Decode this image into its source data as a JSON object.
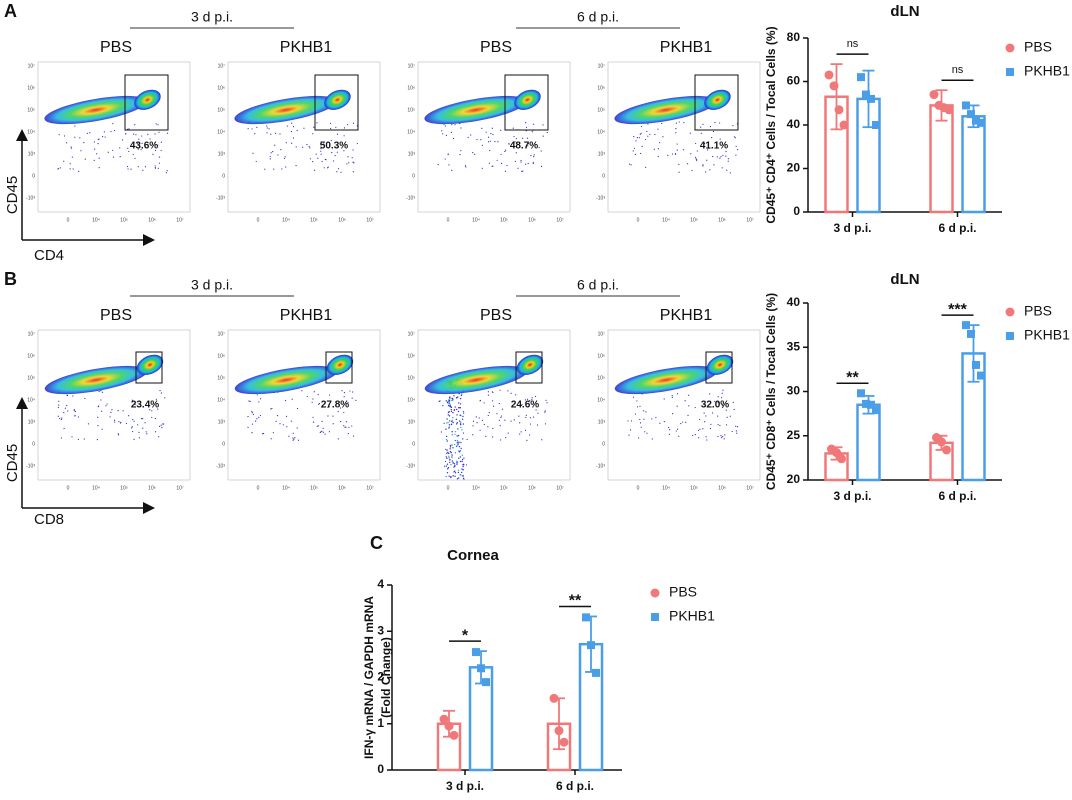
{
  "flow": [
    {
      "letter": "A",
      "marker_x": "CD4",
      "marker_y": "CD45",
      "groups": [
        "3 d p.i.",
        "6 d p.i."
      ],
      "samples": [
        "PBS",
        "PKHB1",
        "PBS",
        "PKHB1"
      ],
      "gates": [
        "43.6%",
        "50.3%",
        "48.7%",
        "41.1%"
      ]
    },
    {
      "letter": "B",
      "marker_x": "CD8",
      "marker_y": "CD45",
      "groups": [
        "3 d p.i.",
        "6 d p.i."
      ],
      "samples": [
        "PBS",
        "PKHB1",
        "PBS",
        "PKHB1"
      ],
      "gates": [
        "23.4%",
        "27.8%",
        "24.6%",
        "32.0%"
      ]
    }
  ],
  "flow_yticks": [
    "10⁷",
    "10⁶",
    "10⁵",
    "10⁴",
    "10³",
    "0",
    "-10³"
  ],
  "flow_xticks": [
    "0",
    "10⁴",
    "10⁵",
    "10⁶",
    "10⁷"
  ],
  "chart_data": [
    {
      "type": "bar",
      "title": "dLN",
      "ylabel": "CD45⁺ CD4⁺ Cells / Tocal Cells (%)",
      "categories": [
        "3 d p.i.",
        "6 d p.i."
      ],
      "ylim": [
        0,
        80
      ],
      "yticks": [
        0,
        20,
        40,
        60,
        80
      ],
      "series": [
        {
          "name": "PBS",
          "color": "#f07878",
          "marker": "circle",
          "values": [
            53,
            49
          ],
          "errors": [
            15,
            7
          ],
          "points": [
            [
              63,
              58,
              47,
              40
            ],
            [
              54,
              49,
              48,
              47
            ]
          ]
        },
        {
          "name": "PKHB1",
          "color": "#4a9ee8",
          "marker": "square",
          "values": [
            52,
            44
          ],
          "errors": [
            13,
            5
          ],
          "points": [
            [
              62,
              54,
              52,
              40
            ],
            [
              49,
              45,
              42,
              41
            ]
          ]
        }
      ],
      "annotations": [
        {
          "category": "3 d p.i.",
          "text": "ns"
        },
        {
          "category": "6 d p.i.",
          "text": "ns"
        }
      ]
    },
    {
      "type": "bar",
      "title": "dLN",
      "ylabel": "CD45⁺ CD8⁺ Cells / Tocal Cells (%)",
      "categories": [
        "3 d p.i.",
        "6 d p.i."
      ],
      "ylim": [
        20,
        40
      ],
      "yticks": [
        20,
        25,
        30,
        35,
        40
      ],
      "series": [
        {
          "name": "PBS",
          "color": "#f07878",
          "marker": "circle",
          "values": [
            23,
            24.2
          ],
          "errors": [
            0.7,
            0.8
          ],
          "points": [
            [
              23.5,
              23.1,
              22.4
            ],
            [
              24.8,
              24.3,
              23.4
            ]
          ]
        },
        {
          "name": "PKHB1",
          "color": "#4a9ee8",
          "marker": "square",
          "values": [
            28.5,
            34.3
          ],
          "errors": [
            1,
            3.2
          ],
          "points": [
            [
              29.8,
              28.6,
              28.5,
              27.9
            ],
            [
              37.5,
              36.5,
              33,
              31.8
            ]
          ]
        }
      ],
      "annotations": [
        {
          "category": "3 d p.i.",
          "text": "**"
        },
        {
          "category": "6 d p.i.",
          "text": "***"
        }
      ]
    },
    {
      "type": "bar",
      "panel": "C",
      "title": "Cornea",
      "ylabel": [
        "IFN-γ mRNA / GAPDH mRNA",
        "(Fold Change)"
      ],
      "categories": [
        "3 d p.i.",
        "6 d p.i."
      ],
      "ylim": [
        0,
        4
      ],
      "yticks": [
        0,
        1,
        2,
        3,
        4
      ],
      "series": [
        {
          "name": "PBS",
          "color": "#f07878",
          "marker": "circle",
          "values": [
            1,
            1
          ],
          "errors": [
            0.28,
            0.55
          ],
          "points": [
            [
              1.1,
              0.95,
              0.75
            ],
            [
              1.55,
              0.85,
              0.6
            ]
          ]
        },
        {
          "name": "PKHB1",
          "color": "#4a9ee8",
          "marker": "square",
          "values": [
            2.22,
            2.72
          ],
          "errors": [
            0.35,
            0.6
          ],
          "points": [
            [
              2.55,
              2.2,
              1.9
            ],
            [
              3.3,
              2.7,
              2.1
            ]
          ]
        }
      ],
      "annotations": [
        {
          "category": "3 d p.i.",
          "text": "*"
        },
        {
          "category": "6 d p.i.",
          "text": "**"
        }
      ]
    }
  ]
}
